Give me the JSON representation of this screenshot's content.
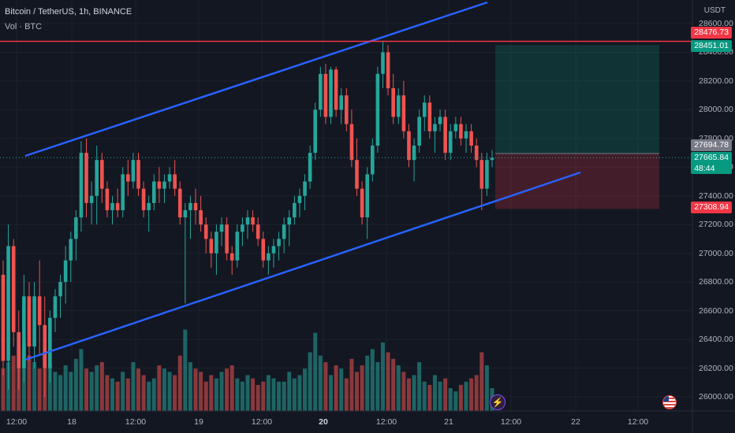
{
  "header": {
    "title": "Bitcoin / TetherUS, 1h, BINANCE",
    "indicator": "Vol · BTC"
  },
  "axis": {
    "currency": "USDT",
    "y_ticks": [
      "28600.00",
      "28400.00",
      "28200.00",
      "28000.00",
      "27800.00",
      "27600.00",
      "27400.00",
      "27200.00",
      "27000.00",
      "26800.00",
      "26600.00",
      "26400.00",
      "26200.00",
      "26000.00"
    ],
    "x_ticks": [
      {
        "label": "12:00",
        "bold": false
      },
      {
        "label": "18",
        "bold": false
      },
      {
        "label": "12:00",
        "bold": false
      },
      {
        "label": "19",
        "bold": false
      },
      {
        "label": "12:00",
        "bold": false
      },
      {
        "label": "20",
        "bold": true
      },
      {
        "label": "12:00",
        "bold": false
      },
      {
        "label": "21",
        "bold": false
      },
      {
        "label": "12:00",
        "bold": false
      },
      {
        "label": "22",
        "bold": false
      },
      {
        "label": "12:00",
        "bold": false
      }
    ]
  },
  "price_tags": {
    "resistance": "28476.73",
    "target": "28451.01",
    "entry": "27694.78",
    "current": "27665.84",
    "countdown": "48:44",
    "stop": "27308.94"
  },
  "colors": {
    "background": "#131722",
    "up": "#26a69a",
    "down": "#ef5350",
    "channel": "#2962ff",
    "resistance": "#f23645"
  },
  "chart_data": {
    "type": "candlestick",
    "symbol": "BTCUSDT",
    "timeframe": "1h",
    "price_range": [
      25900,
      28700
    ],
    "resistance_level": 28476.73,
    "position": {
      "entry": 27694.78,
      "target": 28451.01,
      "stop": 27308.94
    },
    "candles": [
      [
        26850,
        26950,
        26150,
        26250
      ],
      [
        26250,
        27200,
        26050,
        27050
      ],
      [
        27050,
        27100,
        26350,
        26450
      ],
      [
        26450,
        26600,
        26050,
        26200
      ],
      [
        26200,
        26850,
        26100,
        26700
      ],
      [
        26700,
        26800,
        26250,
        26350
      ],
      [
        26350,
        26800,
        26200,
        26700
      ],
      [
        26700,
        26950,
        26300,
        26500
      ],
      [
        26500,
        26700,
        26000,
        26200
      ],
      [
        26200,
        26600,
        26100,
        26550
      ],
      [
        26550,
        26750,
        26450,
        26700
      ],
      [
        26700,
        26850,
        26550,
        26800
      ],
      [
        26800,
        27050,
        26650,
        26950
      ],
      [
        26950,
        27150,
        26800,
        27100
      ],
      [
        27100,
        27300,
        26950,
        27250
      ],
      [
        27250,
        27780,
        27150,
        27700
      ],
      [
        27700,
        27800,
        27250,
        27350
      ],
      [
        27350,
        27500,
        27200,
        27400
      ],
      [
        27400,
        27750,
        27200,
        27650
      ],
      [
        27650,
        27700,
        27350,
        27450
      ],
      [
        27450,
        27500,
        27250,
        27300
      ],
      [
        27300,
        27400,
        27200,
        27350
      ],
      [
        27350,
        27450,
        27250,
        27300
      ],
      [
        27300,
        27600,
        27250,
        27550
      ],
      [
        27550,
        27650,
        27400,
        27500
      ],
      [
        27500,
        27700,
        27450,
        27650
      ],
      [
        27650,
        27700,
        27400,
        27450
      ],
      [
        27450,
        27500,
        27250,
        27300
      ],
      [
        27300,
        27400,
        27150,
        27350
      ],
      [
        27350,
        27550,
        27300,
        27500
      ],
      [
        27500,
        27600,
        27350,
        27450
      ],
      [
        27450,
        27550,
        27350,
        27500
      ],
      [
        27500,
        27600,
        27450,
        27550
      ],
      [
        27550,
        27650,
        27400,
        27450
      ],
      [
        27450,
        27500,
        27200,
        27250
      ],
      [
        27250,
        27350,
        26650,
        27300
      ],
      [
        27300,
        27400,
        27100,
        27350
      ],
      [
        27350,
        27450,
        27200,
        27300
      ],
      [
        27300,
        27400,
        27150,
        27200
      ],
      [
        27200,
        27250,
        27000,
        27100
      ],
      [
        27100,
        27150,
        26900,
        27000
      ],
      [
        27000,
        27200,
        26850,
        27150
      ],
      [
        27150,
        27250,
        27050,
        27200
      ],
      [
        27200,
        27250,
        26950,
        27000
      ],
      [
        27000,
        27050,
        26850,
        26950
      ],
      [
        26950,
        27200,
        26900,
        27150
      ],
      [
        27150,
        27250,
        27050,
        27200
      ],
      [
        27200,
        27300,
        27100,
        27250
      ],
      [
        27250,
        27300,
        27150,
        27200
      ],
      [
        27200,
        27250,
        27050,
        27100
      ],
      [
        27100,
        27150,
        26900,
        26950
      ],
      [
        26950,
        27050,
        26850,
        27000
      ],
      [
        27000,
        27100,
        26900,
        27050
      ],
      [
        27050,
        27150,
        26950,
        27100
      ],
      [
        27100,
        27250,
        27000,
        27200
      ],
      [
        27200,
        27300,
        27050,
        27250
      ],
      [
        27250,
        27400,
        27200,
        27350
      ],
      [
        27350,
        27450,
        27250,
        27400
      ],
      [
        27400,
        27550,
        27300,
        27500
      ],
      [
        27500,
        27750,
        27450,
        27700
      ],
      [
        27700,
        28050,
        27650,
        28000
      ],
      [
        28000,
        28300,
        27950,
        28250
      ],
      [
        28250,
        28320,
        27900,
        27950
      ],
      [
        27950,
        28300,
        27900,
        28280
      ],
      [
        28280,
        28300,
        27950,
        28000
      ],
      [
        28000,
        28150,
        27900,
        28100
      ],
      [
        28100,
        28150,
        27850,
        27900
      ],
      [
        27900,
        28000,
        27600,
        27650
      ],
      [
        27650,
        27800,
        27400,
        27450
      ],
      [
        27450,
        27500,
        27200,
        27250
      ],
      [
        27250,
        27600,
        27100,
        27550
      ],
      [
        27550,
        27800,
        27500,
        27750
      ],
      [
        27750,
        28300,
        27700,
        28250
      ],
      [
        28250,
        28480,
        28150,
        28400
      ],
      [
        28400,
        28450,
        28100,
        28150
      ],
      [
        28150,
        28250,
        27900,
        27950
      ],
      [
        27950,
        28150,
        27900,
        28100
      ],
      [
        28100,
        28200,
        27800,
        27850
      ],
      [
        27850,
        27900,
        27600,
        27650
      ],
      [
        27650,
        27800,
        27500,
        27750
      ],
      [
        27750,
        28000,
        27700,
        27950
      ],
      [
        27950,
        28100,
        27850,
        28050
      ],
      [
        28050,
        28100,
        27800,
        27850
      ],
      [
        27850,
        27950,
        27700,
        27900
      ],
      [
        27900,
        28000,
        27850,
        27950
      ],
      [
        27950,
        28000,
        27650,
        27700
      ],
      [
        27700,
        27900,
        27650,
        27850
      ],
      [
        27850,
        27950,
        27800,
        27900
      ],
      [
        27900,
        27950,
        27750,
        27800
      ],
      [
        27800,
        27900,
        27700,
        27850
      ],
      [
        27850,
        27900,
        27700,
        27750
      ],
      [
        27750,
        27800,
        27600,
        27650
      ],
      [
        27650,
        27700,
        27300,
        27450
      ],
      [
        27450,
        27700,
        27400,
        27650
      ],
      [
        27650,
        27720,
        27600,
        27666
      ]
    ],
    "volume_range": [
      0,
      2900
    ]
  }
}
